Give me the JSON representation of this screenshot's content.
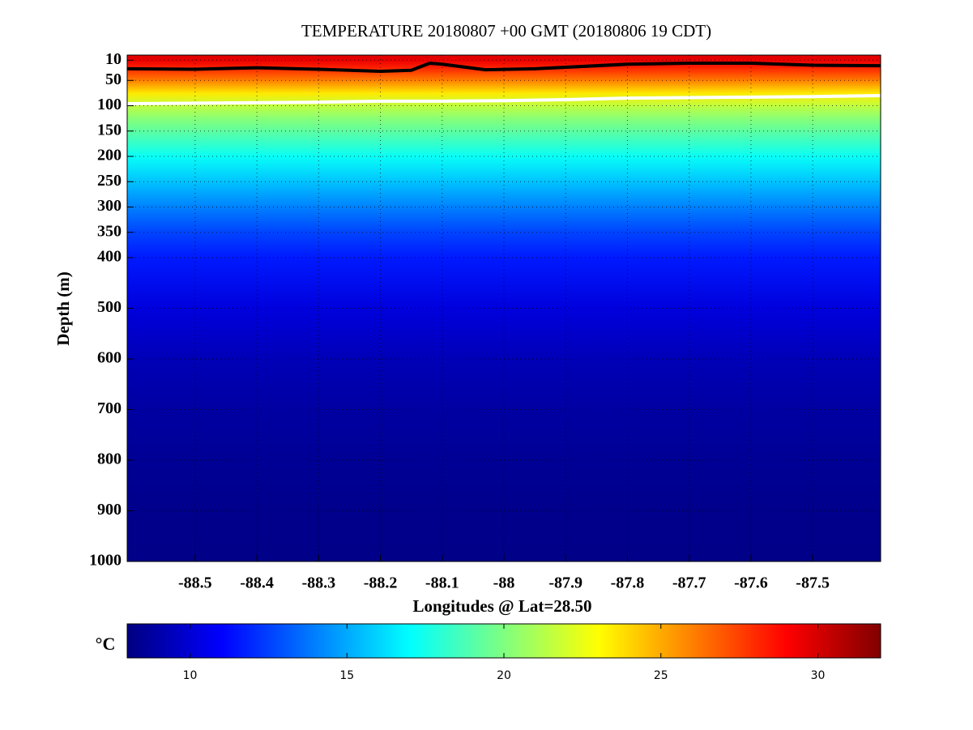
{
  "chart_data": {
    "type": "section",
    "title": "TEMPERATURE 20180807 +00 GMT (20180806 19 CDT)",
    "xlabel": "Longitudes @ Lat=28.50",
    "ylabel": "Depth (m)",
    "xlim": [
      -88.61,
      -87.39
    ],
    "xticks": [
      -88.5,
      -88.4,
      -88.3,
      -88.2,
      -88.1,
      -88,
      -87.9,
      -87.8,
      -87.7,
      -87.6,
      -87.5
    ],
    "ylim": [
      0,
      1000
    ],
    "yticks": [
      10,
      50,
      100,
      150,
      200,
      250,
      300,
      350,
      400,
      500,
      600,
      700,
      800,
      900,
      1000
    ],
    "y_reversed": true,
    "grid": true,
    "depths": [
      0,
      10,
      25,
      50,
      75,
      100,
      125,
      150,
      200,
      250,
      300,
      350,
      400,
      500,
      600,
      700,
      800,
      900,
      1000
    ],
    "temperature": [
      29.8,
      29.5,
      28.2,
      26,
      23.5,
      21.5,
      20.2,
      19.2,
      17.2,
      15.6,
      14,
      12.6,
      11.6,
      10.2,
      9.3,
      8.8,
      8.5,
      8.3,
      8.2
    ],
    "series": [
      {
        "color": "#000000",
        "x": [
          -88.61,
          -88.5,
          -88.4,
          -88.3,
          -88.2,
          -88.15,
          -88.12,
          -88.1,
          -88.03,
          -87.95,
          -87.8,
          -87.7,
          -87.6,
          -87.5,
          -87.39
        ],
        "values": [
          27,
          28,
          25,
          28,
          32,
          30,
          16,
          18,
          29,
          27,
          18,
          16,
          16,
          20,
          21
        ]
      },
      {
        "color": "#ffffff",
        "x": [
          -88.61,
          -88.5,
          -88.4,
          -88.3,
          -88.2,
          -88.1,
          -88,
          -87.9,
          -87.8,
          -87.7,
          -87.6,
          -87.5,
          -87.39
        ],
        "values": [
          96,
          95,
          94,
          93,
          91,
          91,
          90,
          88,
          85,
          84,
          83,
          82,
          80
        ]
      }
    ],
    "colorbar_label": "°C",
    "clim": [
      8,
      32
    ],
    "cticks": [
      10,
      15,
      20,
      25,
      30
    ]
  }
}
